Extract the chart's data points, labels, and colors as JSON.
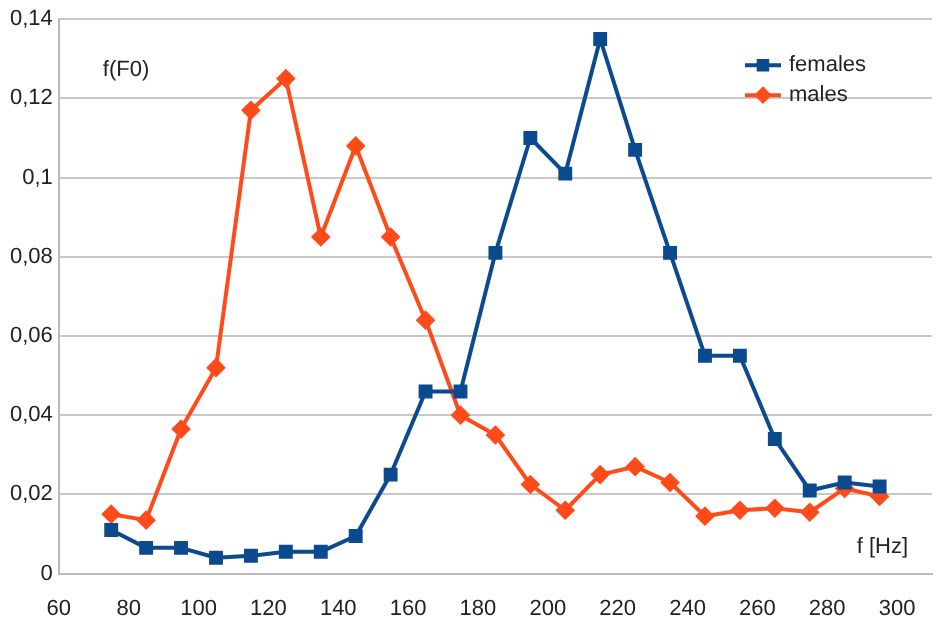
{
  "chart_data": {
    "type": "line",
    "xlabel": "f [Hz]",
    "ylabel": "f(F0)",
    "x": [
      75,
      85,
      95,
      105,
      115,
      125,
      135,
      145,
      155,
      165,
      175,
      185,
      195,
      205,
      215,
      225,
      235,
      245,
      255,
      265,
      275,
      285,
      295
    ],
    "series": [
      {
        "name": "females",
        "color": "#0b4a8f",
        "marker": "square",
        "values": [
          0.011,
          0.0065,
          0.0065,
          0.004,
          0.0045,
          0.0055,
          0.0055,
          0.0095,
          0.025,
          0.046,
          0.046,
          0.081,
          0.11,
          0.101,
          0.135,
          0.107,
          0.081,
          0.055,
          0.055,
          0.034,
          0.021,
          0.023,
          0.022
        ]
      },
      {
        "name": "males",
        "color": "#ff4a1a",
        "marker": "diamond",
        "values": [
          0.015,
          0.0135,
          0.0365,
          0.052,
          0.117,
          0.125,
          0.085,
          0.108,
          0.085,
          0.064,
          0.04,
          0.035,
          0.0225,
          0.016,
          0.025,
          0.027,
          0.023,
          0.0145,
          0.016,
          0.0165,
          0.0155,
          0.0215,
          0.0195
        ]
      }
    ],
    "xlim": [
      60,
      310
    ],
    "xticks": [
      60,
      80,
      100,
      120,
      140,
      160,
      180,
      200,
      220,
      240,
      260,
      280,
      300
    ],
    "ylim": [
      0,
      0.14
    ],
    "yticks": [
      {
        "value": 0,
        "label": "0"
      },
      {
        "value": 0.02,
        "label": "0,02"
      },
      {
        "value": 0.04,
        "label": "0,04"
      },
      {
        "value": 0.06,
        "label": "0,06"
      },
      {
        "value": 0.08,
        "label": "0,08"
      },
      {
        "value": 0.1,
        "label": "0,1"
      },
      {
        "value": 0.12,
        "label": "0,12"
      },
      {
        "value": 0.14,
        "label": "0,14"
      }
    ],
    "grid": "y",
    "legend": "top right",
    "line_style": "solid"
  }
}
